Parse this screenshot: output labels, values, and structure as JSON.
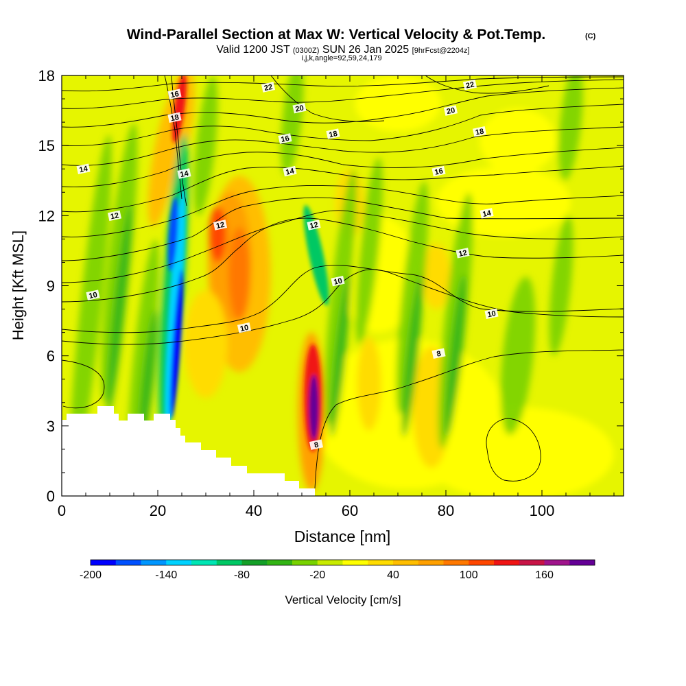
{
  "header": {
    "title_main": "Wind-Parallel Section at Max W: Vertical Velocity & Pot.Temp.",
    "title_mark": "(C)",
    "valid_prefix": "Valid 1200 JST",
    "valid_zulu": "(0300Z)",
    "valid_date": "SUN 26 Jan 2025",
    "forecast": "[9hrFcst@2204z]",
    "section_params": "i,j,k,angle=92,59,24,179"
  },
  "chart_data": {
    "type": "heatmap",
    "xlabel": "Distance [nm]",
    "ylabel": "Height [Kft MSL]",
    "xlim": [
      0,
      117
    ],
    "ylim": [
      0,
      18
    ],
    "xticks": [
      0,
      20,
      40,
      60,
      80,
      100
    ],
    "yticks": [
      0,
      3,
      6,
      9,
      12,
      15,
      18
    ],
    "colorbar": {
      "label": "Vertical Velocity [cm/s]",
      "min": -200,
      "max": 190,
      "step": 20,
      "tick_values": [
        -200,
        -140,
        -80,
        -20,
        40,
        100,
        160
      ],
      "colors": [
        "#0000ff",
        "#0050ff",
        "#0096ff",
        "#00d2ff",
        "#00e6b4",
        "#00c864",
        "#14a028",
        "#32b414",
        "#78d200",
        "#c8eb00",
        "#ffff00",
        "#ffdc00",
        "#ffbe00",
        "#ffa000",
        "#ff7800",
        "#ff4600",
        "#f01414",
        "#c81446",
        "#a0148c",
        "#640096"
      ]
    },
    "vertical_velocity_features": [
      {
        "feature": "downdraft",
        "x": 23.5,
        "y_range": [
          2.8,
          13.5
        ],
        "w_min": -200
      },
      {
        "feature": "downdraft",
        "x": 53,
        "y_range": [
          7,
          12
        ],
        "w_min": -110
      },
      {
        "feature": "updraft",
        "x": 52,
        "y_range": [
          0.3,
          6.5
        ],
        "w_max": 190
      },
      {
        "feature": "updraft",
        "x": 37,
        "y_range": [
          6.5,
          12.5
        ],
        "w_max": 100
      },
      {
        "feature": "updraft",
        "x": 25,
        "y_range": [
          14.5,
          18
        ],
        "w_max": 120
      },
      {
        "feature": "downdraft",
        "x": 95,
        "y_range": [
          1,
          9
        ],
        "w_min": -30
      }
    ],
    "theta_isentropes": [
      {
        "value": 8,
        "labels": [
          {
            "x": 53,
            "y": 2.2
          },
          {
            "x": 78.5,
            "y": 6.1
          }
        ]
      },
      {
        "value": 10,
        "labels": [
          {
            "x": 6.5,
            "y": 8.6
          },
          {
            "x": 38,
            "y": 7.2
          },
          {
            "x": 57.5,
            "y": 9.2
          },
          {
            "x": 89.5,
            "y": 7.8
          }
        ]
      },
      {
        "value": 12,
        "labels": [
          {
            "x": 11,
            "y": 12.0
          },
          {
            "x": 33,
            "y": 11.6
          },
          {
            "x": 52.5,
            "y": 11.6
          },
          {
            "x": 83.5,
            "y": 10.4
          }
        ]
      },
      {
        "value": 14,
        "labels": [
          {
            "x": 4.5,
            "y": 14.0
          },
          {
            "x": 25.5,
            "y": 13.8
          },
          {
            "x": 47.5,
            "y": 13.9
          },
          {
            "x": 88.5,
            "y": 12.1
          }
        ]
      },
      {
        "value": 16,
        "labels": [
          {
            "x": 23.5,
            "y": 17.2
          },
          {
            "x": 46.5,
            "y": 15.3
          },
          {
            "x": 78.5,
            "y": 13.9
          }
        ]
      },
      {
        "value": 18,
        "labels": [
          {
            "x": 23.5,
            "y": 16.2
          },
          {
            "x": 56.5,
            "y": 15.5
          },
          {
            "x": 87,
            "y": 15.6
          }
        ]
      },
      {
        "value": 20,
        "labels": [
          {
            "x": 49.5,
            "y": 16.6
          },
          {
            "x": 81,
            "y": 16.5
          }
        ]
      },
      {
        "value": 22,
        "labels": [
          {
            "x": 43,
            "y": 17.5
          },
          {
            "x": 85,
            "y": 17.6
          }
        ]
      }
    ]
  }
}
